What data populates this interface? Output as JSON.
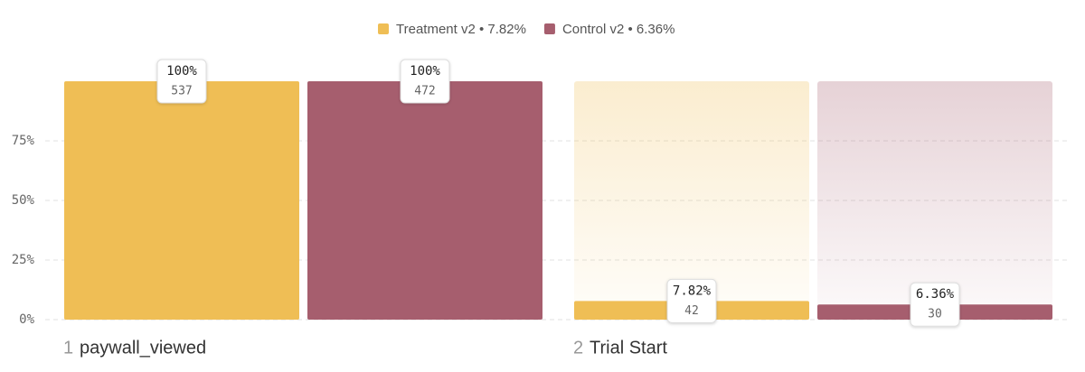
{
  "chart_data": {
    "type": "funnel_bar",
    "step_numbers": [
      "1",
      "2"
    ],
    "categories": [
      "paywall_viewed",
      "Trial Start"
    ],
    "series": [
      {
        "name": "Treatment v2 • 7.82%",
        "color": "#efbe55",
        "values": [
          100,
          7.82
        ],
        "value_labels": [
          "100%",
          "7.82%"
        ],
        "counts": [
          "537",
          "42"
        ]
      },
      {
        "name": "Control v2 • 6.36%",
        "color": "#a65e6e",
        "values": [
          100,
          6.36
        ],
        "value_labels": [
          "100%",
          "6.36%"
        ],
        "counts": [
          "472",
          "30"
        ]
      }
    ],
    "ylim": [
      0,
      100
    ],
    "yticks": [
      {
        "value": 0,
        "label": "0%"
      },
      {
        "value": 25,
        "label": "25%"
      },
      {
        "value": 50,
        "label": "50%"
      },
      {
        "value": 75,
        "label": "75%"
      }
    ],
    "grid": true
  }
}
